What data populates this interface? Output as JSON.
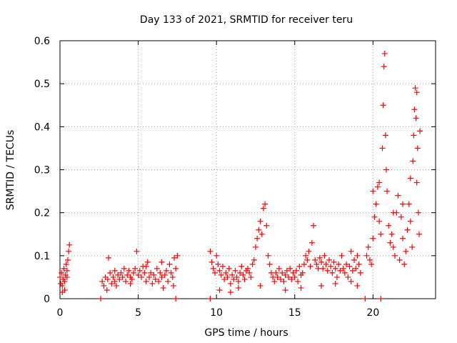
{
  "chart_data": {
    "type": "scatter",
    "title": "Day 133 of 2021, SRMTID for receiver teru",
    "xlabel": "GPS time / hours",
    "ylabel": "SRMTID / TECUs",
    "xlim": [
      0,
      24
    ],
    "ylim": [
      0,
      0.6
    ],
    "xticks": [
      0,
      5,
      10,
      15,
      20
    ],
    "yticks": [
      0,
      0.1,
      0.2,
      0.3,
      0.4,
      0.5,
      0.6
    ],
    "xtick_labels": [
      "0",
      "5",
      "10",
      "15",
      "20"
    ],
    "ytick_labels": [
      "0",
      "0.1",
      "0.2",
      "0.3",
      "0.4",
      "0.5",
      "0.6"
    ],
    "grid": true,
    "marker": "+",
    "color": "#ff0000",
    "series": [
      {
        "name": "SRMTID",
        "points": [
          [
            0.0,
            0.05
          ],
          [
            0.05,
            0.035
          ],
          [
            0.1,
            0.06
          ],
          [
            0.15,
            0.03
          ],
          [
            0.2,
            0.045
          ],
          [
            0.25,
            0.07
          ],
          [
            0.3,
            0.02
          ],
          [
            0.35,
            0.055
          ],
          [
            0.4,
            0.08
          ],
          [
            0.45,
            0.065
          ],
          [
            0.5,
            0.09
          ],
          [
            0.55,
            0.11
          ],
          [
            0.6,
            0.125
          ],
          [
            0.15,
            0.015
          ],
          [
            0.3,
            0.04
          ],
          [
            0.45,
            0.05
          ],
          [
            2.6,
            0.0
          ],
          [
            2.7,
            0.04
          ],
          [
            2.8,
            0.03
          ],
          [
            2.9,
            0.05
          ],
          [
            3.0,
            0.02
          ],
          [
            3.05,
            0.045
          ],
          [
            3.1,
            0.095
          ],
          [
            3.2,
            0.06
          ],
          [
            3.3,
            0.035
          ],
          [
            3.4,
            0.05
          ],
          [
            3.5,
            0.04
          ],
          [
            3.6,
            0.03
          ],
          [
            3.7,
            0.055
          ],
          [
            3.8,
            0.045
          ],
          [
            3.9,
            0.06
          ],
          [
            4.0,
            0.05
          ],
          [
            4.1,
            0.07
          ],
          [
            4.2,
            0.04
          ],
          [
            4.3,
            0.055
          ],
          [
            4.4,
            0.065
          ],
          [
            4.5,
            0.05
          ],
          [
            4.6,
            0.045
          ],
          [
            4.7,
            0.06
          ],
          [
            4.8,
            0.07
          ],
          [
            4.9,
            0.11
          ],
          [
            5.0,
            0.055
          ],
          [
            5.1,
            0.065
          ],
          [
            5.2,
            0.05
          ],
          [
            5.3,
            0.075
          ],
          [
            5.4,
            0.06
          ],
          [
            5.5,
            0.04
          ],
          [
            5.6,
            0.085
          ],
          [
            5.7,
            0.05
          ],
          [
            5.8,
            0.06
          ],
          [
            5.9,
            0.035
          ],
          [
            6.0,
            0.055
          ],
          [
            6.1,
            0.045
          ],
          [
            6.2,
            0.07
          ],
          [
            6.3,
            0.04
          ],
          [
            6.4,
            0.06
          ],
          [
            6.5,
            0.05
          ],
          [
            6.6,
            0.025
          ],
          [
            6.7,
            0.055
          ],
          [
            6.8,
            0.065
          ],
          [
            6.9,
            0.04
          ],
          [
            7.0,
            0.08
          ],
          [
            7.1,
            0.06
          ],
          [
            7.2,
            0.05
          ],
          [
            7.3,
            0.095
          ],
          [
            7.4,
            0.07
          ],
          [
            7.5,
            0.1
          ],
          [
            3.5,
            0.065
          ],
          [
            4.5,
            0.035
          ],
          [
            5.5,
            0.075
          ],
          [
            6.5,
            0.085
          ],
          [
            7.25,
            0.03
          ],
          [
            7.4,
            0.0
          ],
          [
            9.6,
            0.0
          ],
          [
            9.6,
            0.11
          ],
          [
            9.7,
            0.085
          ],
          [
            9.8,
            0.07
          ],
          [
            9.9,
            0.06
          ],
          [
            10.0,
            0.1
          ],
          [
            10.1,
            0.08
          ],
          [
            10.2,
            0.065
          ],
          [
            10.3,
            0.055
          ],
          [
            10.4,
            0.075
          ],
          [
            10.5,
            0.045
          ],
          [
            10.6,
            0.06
          ],
          [
            10.7,
            0.05
          ],
          [
            10.8,
            0.07
          ],
          [
            10.9,
            0.035
          ],
          [
            11.0,
            0.055
          ],
          [
            11.1,
            0.045
          ],
          [
            11.2,
            0.065
          ],
          [
            11.3,
            0.05
          ],
          [
            11.4,
            0.04
          ],
          [
            11.5,
            0.06
          ],
          [
            11.6,
            0.075
          ],
          [
            11.7,
            0.055
          ],
          [
            11.8,
            0.045
          ],
          [
            11.9,
            0.065
          ],
          [
            12.0,
            0.07
          ],
          [
            12.1,
            0.06
          ],
          [
            12.2,
            0.05
          ],
          [
            12.3,
            0.08
          ],
          [
            12.4,
            0.09
          ],
          [
            12.5,
            0.12
          ],
          [
            12.6,
            0.14
          ],
          [
            12.7,
            0.16
          ],
          [
            12.8,
            0.18
          ],
          [
            12.9,
            0.15
          ],
          [
            13.0,
            0.21
          ],
          [
            13.1,
            0.22
          ],
          [
            13.2,
            0.17
          ],
          [
            13.3,
            0.1
          ],
          [
            13.4,
            0.08
          ],
          [
            13.5,
            0.06
          ],
          [
            13.6,
            0.05
          ],
          [
            13.7,
            0.04
          ],
          [
            13.8,
            0.06
          ],
          [
            13.9,
            0.05
          ],
          [
            14.0,
            0.07
          ],
          [
            14.1,
            0.045
          ],
          [
            14.2,
            0.06
          ],
          [
            14.3,
            0.04
          ],
          [
            14.4,
            0.055
          ],
          [
            14.5,
            0.065
          ],
          [
            14.6,
            0.05
          ],
          [
            14.7,
            0.07
          ],
          [
            14.8,
            0.045
          ],
          [
            14.9,
            0.06
          ],
          [
            15.0,
            0.05
          ],
          [
            15.1,
            0.065
          ],
          [
            15.2,
            0.04
          ],
          [
            15.3,
            0.075
          ],
          [
            15.4,
            0.055
          ],
          [
            15.5,
            0.06
          ],
          [
            15.6,
            0.08
          ],
          [
            15.7,
            0.1
          ],
          [
            15.8,
            0.09
          ],
          [
            15.9,
            0.11
          ],
          [
            16.0,
            0.075
          ],
          [
            16.1,
            0.13
          ],
          [
            16.2,
            0.17
          ],
          [
            16.3,
            0.09
          ],
          [
            16.4,
            0.08
          ],
          [
            16.5,
            0.07
          ],
          [
            16.6,
            0.095
          ],
          [
            16.7,
            0.085
          ],
          [
            16.8,
            0.07
          ],
          [
            16.9,
            0.1
          ],
          [
            17.0,
            0.08
          ],
          [
            17.1,
            0.065
          ],
          [
            17.2,
            0.09
          ],
          [
            17.3,
            0.075
          ],
          [
            17.4,
            0.06
          ],
          [
            17.5,
            0.085
          ],
          [
            17.6,
            0.07
          ],
          [
            17.7,
            0.05
          ],
          [
            17.8,
            0.08
          ],
          [
            17.9,
            0.065
          ],
          [
            18.0,
            0.1
          ],
          [
            18.1,
            0.07
          ],
          [
            18.2,
            0.06
          ],
          [
            18.3,
            0.08
          ],
          [
            18.4,
            0.05
          ],
          [
            18.5,
            0.075
          ],
          [
            18.6,
            0.11
          ],
          [
            18.7,
            0.065
          ],
          [
            18.8,
            0.09
          ],
          [
            18.9,
            0.07
          ],
          [
            19.0,
            0.1
          ],
          [
            19.1,
            0.08
          ],
          [
            19.2,
            0.06
          ],
          [
            10.2,
            0.02
          ],
          [
            10.9,
            0.015
          ],
          [
            11.4,
            0.025
          ],
          [
            12.8,
            0.03
          ],
          [
            14.4,
            0.02
          ],
          [
            15.4,
            0.025
          ],
          [
            16.7,
            0.03
          ],
          [
            17.6,
            0.035
          ],
          [
            18.6,
            0.04
          ],
          [
            19.0,
            0.03
          ],
          [
            19.5,
            0.0
          ],
          [
            19.6,
            0.1
          ],
          [
            19.7,
            0.12
          ],
          [
            19.8,
            0.09
          ],
          [
            19.9,
            0.08
          ],
          [
            20.0,
            0.14
          ],
          [
            20.1,
            0.19
          ],
          [
            20.2,
            0.22
          ],
          [
            20.3,
            0.26
          ],
          [
            20.4,
            0.18
          ],
          [
            20.5,
            0.0
          ],
          [
            20.5,
            0.15
          ],
          [
            20.6,
            0.35
          ],
          [
            20.65,
            0.45
          ],
          [
            20.7,
            0.54
          ],
          [
            20.75,
            0.57
          ],
          [
            20.8,
            0.38
          ],
          [
            20.85,
            0.3
          ],
          [
            20.9,
            0.25
          ],
          [
            21.0,
            0.17
          ],
          [
            21.1,
            0.13
          ],
          [
            21.2,
            0.15
          ],
          [
            21.3,
            0.12
          ],
          [
            21.4,
            0.1
          ],
          [
            21.5,
            0.2
          ],
          [
            21.6,
            0.24
          ],
          [
            21.7,
            0.09
          ],
          [
            21.8,
            0.19
          ],
          [
            21.9,
            0.14
          ],
          [
            22.0,
            0.08
          ],
          [
            22.1,
            0.11
          ],
          [
            22.2,
            0.16
          ],
          [
            22.3,
            0.22
          ],
          [
            22.4,
            0.18
          ],
          [
            22.5,
            0.12
          ],
          [
            22.55,
            0.32
          ],
          [
            22.6,
            0.38
          ],
          [
            22.65,
            0.44
          ],
          [
            22.7,
            0.49
          ],
          [
            22.75,
            0.42
          ],
          [
            22.8,
            0.27
          ],
          [
            22.85,
            0.35
          ],
          [
            22.9,
            0.2
          ],
          [
            22.95,
            0.15
          ],
          [
            23.0,
            0.39
          ],
          [
            20.0,
            0.25
          ],
          [
            20.4,
            0.27
          ],
          [
            21.3,
            0.2
          ],
          [
            21.9,
            0.22
          ],
          [
            22.4,
            0.28
          ],
          [
            22.8,
            0.48
          ]
        ]
      }
    ]
  }
}
